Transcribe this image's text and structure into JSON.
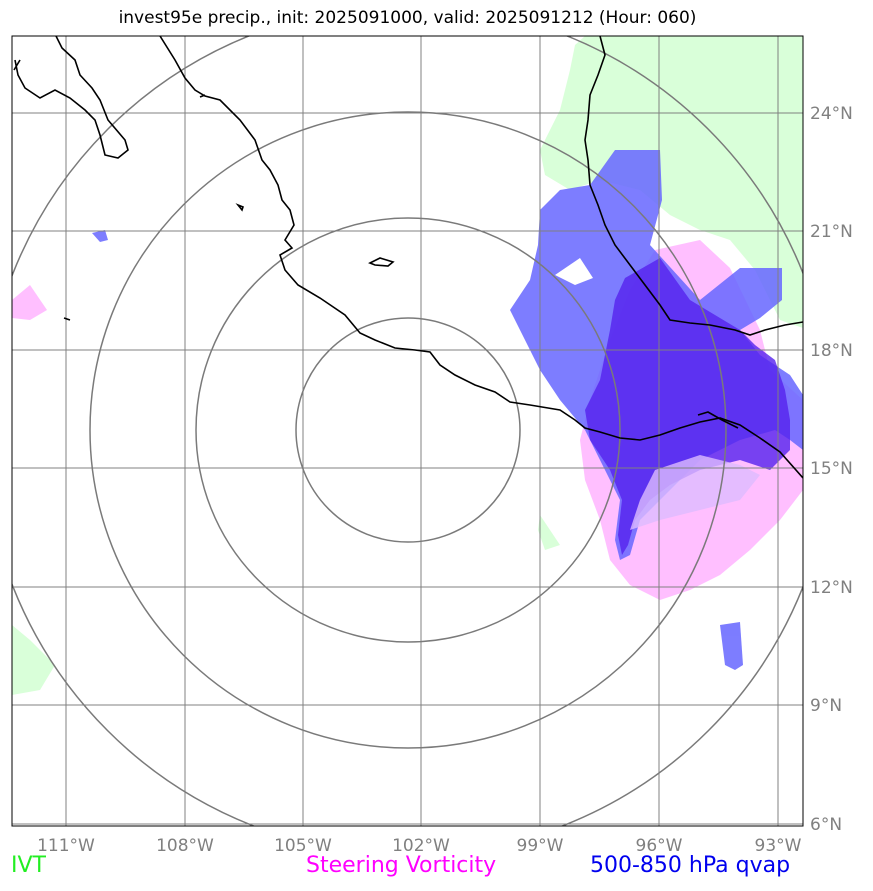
{
  "title": "invest95e precip., init: 2025091000, valid: 2025091212 (Hour: 060)",
  "map": {
    "lon_ticks": [
      "111°W",
      "108°W",
      "105°W",
      "102°W",
      "99°W",
      "96°W",
      "93°W"
    ],
    "lat_ticks": [
      "24°N",
      "21°N",
      "18°N",
      "15°N",
      "12°N",
      "9°N",
      "6°N"
    ],
    "center": "102°W, 15°N",
    "colors": {
      "ivt": "#ccffcc",
      "vorticity": "#ffaaff",
      "qvap_light": "#7777ff",
      "qvap_dark": "#5533ee",
      "grid": "#808080",
      "range_rings": "#7a7a7a",
      "coastline": "#000000"
    }
  },
  "legend": {
    "ivt": "IVT",
    "vorticity": "Steering Vorticity",
    "qvap": "500-850 hPa qvap"
  }
}
